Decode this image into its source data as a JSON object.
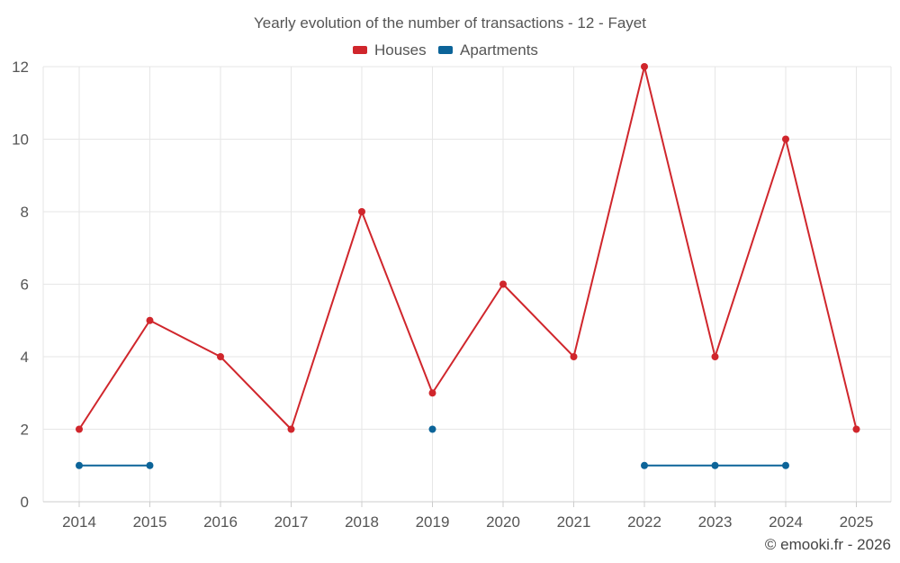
{
  "chart_data": {
    "type": "line",
    "title": "Yearly evolution of the number of transactions - 12 - Fayet",
    "categories": [
      "2014",
      "2015",
      "2016",
      "2017",
      "2018",
      "2019",
      "2020",
      "2021",
      "2022",
      "2023",
      "2024",
      "2025"
    ],
    "series": [
      {
        "name": "Houses",
        "color": "#d0262c",
        "values": [
          2,
          5,
          4,
          2,
          8,
          3,
          6,
          4,
          12,
          4,
          10,
          2
        ]
      },
      {
        "name": "Apartments",
        "color": "#0c6499",
        "values": [
          1,
          1,
          null,
          null,
          null,
          2,
          null,
          null,
          1,
          1,
          1,
          null
        ]
      }
    ],
    "ylim": [
      0,
      12
    ],
    "yticks": [
      0,
      2,
      4,
      6,
      8,
      10,
      12
    ],
    "xlabel": "",
    "ylabel": "",
    "grid": true,
    "legend": "top-center"
  },
  "credit": "© emooki.fr - 2026"
}
